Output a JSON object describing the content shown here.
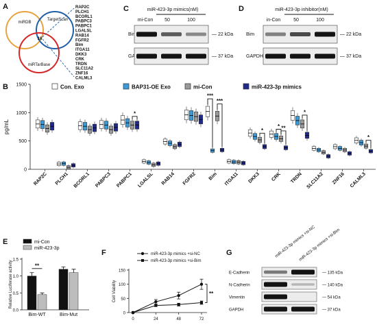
{
  "panels": {
    "a": {
      "letter": "A",
      "circles": {
        "top_left": "miRDB",
        "top_right": "TargetScan",
        "bottom": "miRTarBase"
      },
      "overlap_count": "16",
      "gene_list": [
        "RAP2C",
        "PLCH1",
        "BCORL1",
        "PABPC3",
        "PABPC1",
        "LGALSL",
        "RAB14",
        "FGFR2",
        "Bim",
        "ITGA11",
        "DKK3",
        "CRK",
        "TRDN",
        "SLC11A2",
        "ZNF16",
        "CALML3"
      ],
      "colors": {
        "mirdb": "#e8a33d",
        "targetscan": "#1f5fa8",
        "mirtarbase": "#d62728"
      }
    },
    "c": {
      "letter": "C",
      "treatment": "miR-423-3p mimics(nM)",
      "lanes": [
        "mi-Con",
        "50",
        "100"
      ],
      "rows": [
        {
          "label": "Bim",
          "marker": "22 kDa",
          "intensity": [
            1.0,
            0.6,
            0.35
          ]
        },
        {
          "label": "GAPDH",
          "marker": "37 kDa",
          "intensity": [
            1.0,
            1.0,
            1.0
          ]
        }
      ]
    },
    "d": {
      "letter": "D",
      "treatment": "miR-423-3p inhibitor(nM)",
      "lanes": [
        "in-Con",
        "50",
        "100"
      ],
      "rows": [
        {
          "label": "Bim",
          "marker": "22 kDa",
          "intensity": [
            0.4,
            0.7,
            1.0
          ]
        },
        {
          "label": "GAPDH",
          "marker": "37 kDa",
          "intensity": [
            1.0,
            1.0,
            1.0
          ]
        }
      ]
    },
    "b": {
      "letter": "B"
    },
    "e": {
      "letter": "E"
    },
    "f": {
      "letter": "F"
    },
    "g": {
      "letter": "G",
      "columns": [
        "miR-423-3p mimics +si-NC",
        "miR-423-3p mimics +si-Bim"
      ],
      "rows": [
        {
          "label": "E-Cadherin",
          "marker": "135 kDa",
          "intensity": [
            0.45,
            1.0
          ]
        },
        {
          "label": "N-Cadherin",
          "marker": "140 kDa",
          "intensity": [
            1.0,
            0.12
          ]
        },
        {
          "label": "Vimentin",
          "marker": "54 kDa",
          "intensity": [
            1.0,
            0.0
          ]
        },
        {
          "label": "GAPDH",
          "marker": "37 kDa",
          "intensity": [
            1.0,
            1.0
          ]
        }
      ]
    }
  },
  "chart_data": [
    {
      "panel": "B",
      "type": "box",
      "ylabel": "pg/mL",
      "ylim": [
        0,
        1500
      ],
      "yticks": [
        0,
        500,
        1000,
        1500
      ],
      "grid": false,
      "legend_position": "top",
      "series": [
        {
          "name": "Con. Exo",
          "color": "#ffffff"
        },
        {
          "name": "BAP31-OE Exo",
          "color": "#3a9bd8"
        },
        {
          "name": "mi-Con",
          "color": "#9a9a9a"
        },
        {
          "name": "miR-423-3p mimics",
          "color": "#1f2a8c"
        }
      ],
      "categories": [
        "RAP2C",
        "PLCH1",
        "BCORL1",
        "PABPC3",
        "PABPC1",
        "LGALSL",
        "RAB14",
        "FGFR2",
        "Bim",
        "ITGA11",
        "DKK3",
        "CRK",
        "TRDN",
        "SLC11A2",
        "ZNF16",
        "CALML3"
      ],
      "medians": [
        [
          800,
          790,
          720,
          760
        ],
        [
          95,
          100,
          35,
          70
        ],
        [
          770,
          760,
          700,
          730
        ],
        [
          790,
          780,
          700,
          740
        ],
        [
          870,
          820,
          780,
          780
        ],
        [
          140,
          120,
          80,
          100
        ],
        [
          490,
          460,
          400,
          440
        ],
        [
          960,
          950,
          930,
          880
        ],
        [
          1020,
          330,
          940,
          340
        ],
        [
          140,
          130,
          125,
          110
        ],
        [
          640,
          580,
          520,
          400
        ],
        [
          620,
          580,
          540,
          380
        ],
        [
          950,
          860,
          800,
          600
        ],
        [
          370,
          340,
          300,
          230
        ],
        [
          400,
          370,
          340,
          280
        ],
        [
          510,
          470,
          410,
          320
        ]
      ],
      "significance": [
        {
          "category": "PABPC1",
          "pair": [
            "mi-Con",
            "miR-423-3p mimics"
          ],
          "label": "*"
        },
        {
          "category": "Bim",
          "pair": [
            "Con. Exo",
            "BAP31-OE Exo"
          ],
          "label": "***"
        },
        {
          "category": "Bim",
          "pair": [
            "mi-Con",
            "miR-423-3p mimics"
          ],
          "label": "***"
        },
        {
          "category": "DKK3",
          "pair": [
            "mi-Con",
            "miR-423-3p mimics"
          ],
          "label": "*"
        },
        {
          "category": "CRK",
          "pair": [
            "BAP31-OE Exo",
            "mi-Con"
          ],
          "label": "*"
        },
        {
          "category": "CRK",
          "pair": [
            "mi-Con",
            "miR-423-3p mimics"
          ],
          "label": "**"
        },
        {
          "category": "TRDN",
          "pair": [
            "mi-Con",
            "miR-423-3p mimics"
          ],
          "label": "*"
        },
        {
          "category": "CALML3",
          "pair": [
            "mi-Con",
            "miR-423-3p mimics"
          ],
          "label": "*"
        }
      ]
    },
    {
      "panel": "E",
      "type": "bar",
      "ylabel": "Relative Luciferase activity",
      "ylim": [
        0,
        1.5
      ],
      "yticks": [
        0.0,
        0.5,
        1.0,
        1.5
      ],
      "categories": [
        "Bim-WT",
        "Bim-Mut"
      ],
      "legend_position": "top",
      "series": [
        {
          "name": "mi-Con",
          "color": "#111111",
          "values": [
            1.0,
            1.2
          ],
          "errors": [
            0.1,
            0.07
          ]
        },
        {
          "name": "miR-423-3p",
          "color": "#bdbdbd",
          "values": [
            0.45,
            1.1
          ],
          "errors": [
            0.05,
            0.1
          ]
        }
      ],
      "significance": [
        {
          "category": "Bim-WT",
          "label": "**"
        }
      ]
    },
    {
      "panel": "F",
      "type": "line",
      "ylabel": "Cell Viability",
      "ylim": [
        0,
        150
      ],
      "yticks": [
        0,
        50,
        100,
        150
      ],
      "x": [
        0,
        24,
        48,
        72
      ],
      "legend_position": "top",
      "series": [
        {
          "name": "miR-423-3p mimics +si-NC",
          "marker": "circle",
          "values": [
            0,
            38,
            60,
            100
          ],
          "errors": [
            0,
            8,
            12,
            18
          ]
        },
        {
          "name": "miR-423-3p mimics +si-Bim",
          "marker": "square",
          "values": [
            0,
            25,
            28,
            35
          ],
          "errors": [
            0,
            4,
            5,
            6
          ]
        }
      ],
      "significance": [
        {
          "at_x": 72,
          "label": "**"
        }
      ]
    }
  ]
}
